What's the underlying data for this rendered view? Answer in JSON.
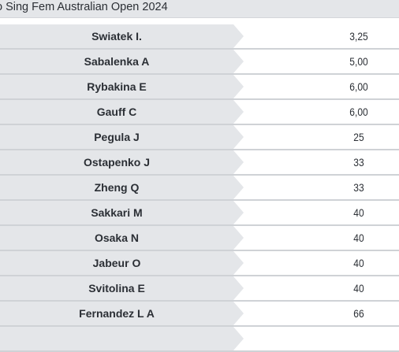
{
  "header": {
    "title": "o Sing Fem Australian Open 2024"
  },
  "rows": [
    {
      "name": "Swiatek I.",
      "odds": "3,25"
    },
    {
      "name": "Sabalenka A",
      "odds": "5,00"
    },
    {
      "name": "Rybakina E",
      "odds": "6,00"
    },
    {
      "name": "Gauff C",
      "odds": "6,00"
    },
    {
      "name": "Pegula J",
      "odds": "25"
    },
    {
      "name": "Ostapenko J",
      "odds": "33"
    },
    {
      "name": "Zheng Q",
      "odds": "33"
    },
    {
      "name": "Sakkari M",
      "odds": "40"
    },
    {
      "name": "Osaka N",
      "odds": "40"
    },
    {
      "name": "Jabeur O",
      "odds": "40"
    },
    {
      "name": "Svitolina E",
      "odds": "40"
    },
    {
      "name": "Fernandez L A",
      "odds": "66"
    },
    {
      "name": "",
      "odds": ""
    }
  ]
}
